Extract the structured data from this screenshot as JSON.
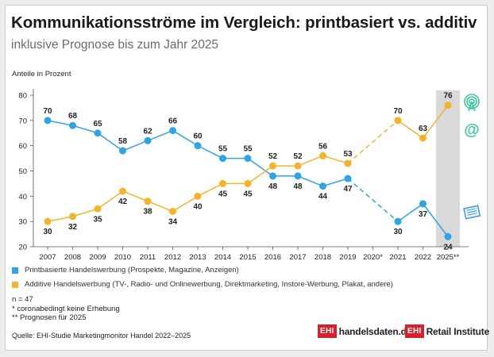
{
  "header": {
    "title": "Kommunikationsströme im Vergleich: printbasiert vs. additiv",
    "subtitle": "inklusive Prognose bis zum Jahr 2025",
    "ylabel": "Anteile in Prozent"
  },
  "legend": {
    "print": "Printbasierte Handelswerbung (Prospekte, Magazine, Anzeigen)",
    "additive": "Additive Handelswerbung (TV-, Radio- und Onlinewerbung, Direktmarketing, Instore-Werbung, Plakat, andere)"
  },
  "notes": {
    "n": "n = 47",
    "star": "*   coronabedingt keine Erhebung",
    "dstar": "** Prognosen für 2025"
  },
  "source": "Quelle: EHI-Studie Marketingmonitor Handel 2022–2025",
  "logos": {
    "left_box": "EHI",
    "left_text": "handelsdaten.de",
    "right_box": "EHI",
    "right_text": "Retail Institute"
  },
  "icons": [
    "antenna-icon",
    "at-sign-icon",
    "newspaper-icon"
  ],
  "colors": {
    "print": "#2ea3e6",
    "additive": "#f5b428",
    "forecast_band": "#d9d9d9",
    "icon_green": "#3cc7a3",
    "icon_blue": "#3a8fe0",
    "brand_red": "#d6202c"
  },
  "chart_data": {
    "type": "line",
    "categories": [
      "2007",
      "2008",
      "2009",
      "2010",
      "2011",
      "2012",
      "2013",
      "2014",
      "2015",
      "2016",
      "2017",
      "2018",
      "2019",
      "2020*",
      "2021",
      "2022",
      "2025**"
    ],
    "ylim": [
      20,
      80
    ],
    "yticks": [
      20,
      30,
      40,
      50,
      60,
      70,
      80
    ],
    "grid": false,
    "forecast_category": "2025**",
    "gap_category": "2020*",
    "series": [
      {
        "name": "Printbasierte Handelswerbung (Prospekte, Magazine, Anzeigen)",
        "key": "print",
        "values": [
          70,
          68,
          65,
          58,
          62,
          66,
          60,
          55,
          55,
          48,
          48,
          44,
          47,
          null,
          30,
          37,
          24
        ]
      },
      {
        "name": "Additive Handelswerbung (TV-, Radio- und Onlinewerbung, Direktmarketing, Instore-Werbung, Plakat, andere)",
        "key": "additive",
        "values": [
          30,
          32,
          35,
          42,
          38,
          34,
          40,
          45,
          45,
          52,
          52,
          56,
          53,
          null,
          70,
          63,
          76
        ]
      }
    ]
  }
}
